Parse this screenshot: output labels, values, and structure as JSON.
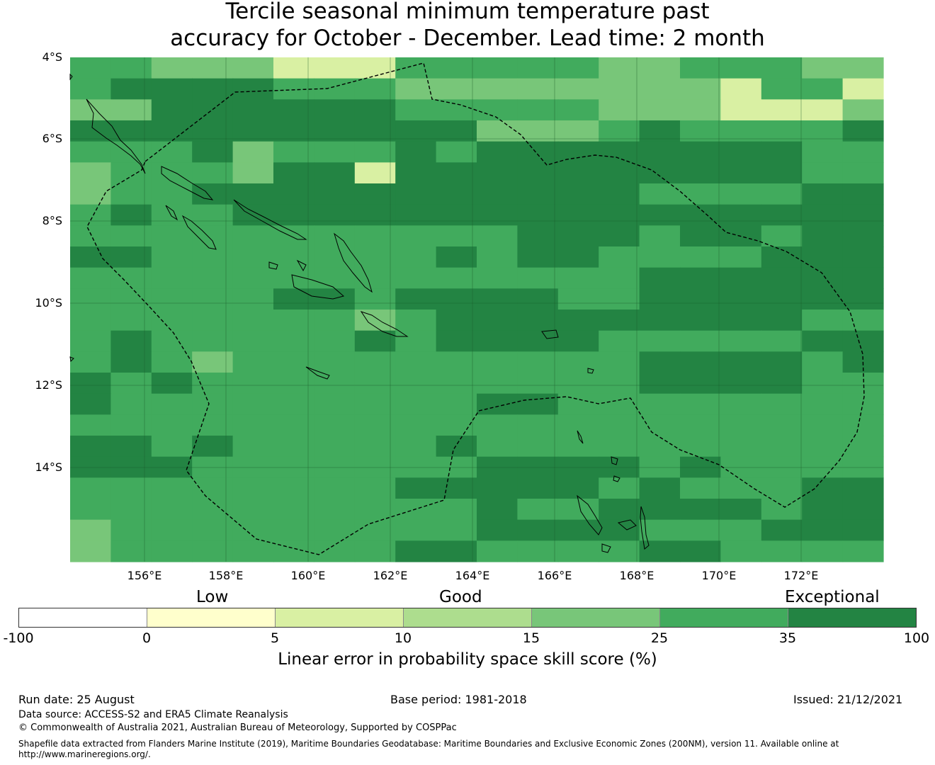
{
  "title": {
    "line1": "Tercile seasonal minimum temperature past",
    "line2": "accuracy for October - December. Lead time: 2 month"
  },
  "map": {
    "latitude_labels": [
      "4°S",
      "6°S",
      "8°S",
      "10°S",
      "12°S",
      "14°S"
    ],
    "longitude_labels": [
      "156°E",
      "158°E",
      "160°E",
      "162°E",
      "164°E",
      "166°E",
      "168°E",
      "170°E",
      "172°E"
    ],
    "grid_rows": [
      "44333222444443344433",
      "45555444333333332442",
      "33555555444443332223",
      "55555555553334544445",
      "44453444545555555544",
      "34443552555555555544",
      "34455555555555444455",
      "45445555555555555555",
      "44444444444555455455",
      "55444444454554444555",
      "44444444444444555555",
      "44444554555544555555",
      "44444443455555555544",
      "45444445455554444455",
      "45434444444444555545",
      "54544444444444555544",
      "54444444445544444444",
      "44444444444444444444",
      "55454444454444444444",
      "55544444445555454444",
      "44444444555554544455",
      "44444444445445555455",
      "34444444445555444555",
      "34444444554444554444"
    ],
    "cell_colors": {
      "1": "#ffffcc",
      "2": "#d9f0a3",
      "3": "#78c679",
      "4": "#41ab5d",
      "5": "#238443"
    },
    "cell_color_reference": [
      "#ffffff",
      "#ffffcc",
      "#d9f0a3",
      "#addd8e",
      "#78c679",
      "#41ab5d",
      "#238443"
    ]
  },
  "colorbar": {
    "category_labels": {
      "low": "Low",
      "good": "Good",
      "exceptional": "Exceptional"
    },
    "colors": [
      "#ffffff",
      "#ffffcc",
      "#d9f0a3",
      "#addd8e",
      "#78c679",
      "#41ab5d",
      "#238443"
    ],
    "ticks": [
      "-100",
      "0",
      "5",
      "10",
      "15",
      "25",
      "35",
      "100"
    ],
    "title": "Linear error in probability space skill score (%)"
  },
  "footer": {
    "run_date": "Run date: 25 August",
    "base_period": "Base period: 1981-2018",
    "issued": "Issued: 21/12/2021",
    "data_source": "Data source: ACCESS-S2 and ERA5 Climate Reanalysis",
    "copyright": "© Commonwealth of Australia 2021, Australian Bureau of Meteorology, Supported by COSPPac",
    "shapefile": "Shapefile data extracted from Flanders Marine Institute (2019), Maritime Boundaries Geodatabase: Maritime Boundaries and Exclusive Economic Zones (200NM), version 11. Available online at http://www.marineregions.org/."
  }
}
